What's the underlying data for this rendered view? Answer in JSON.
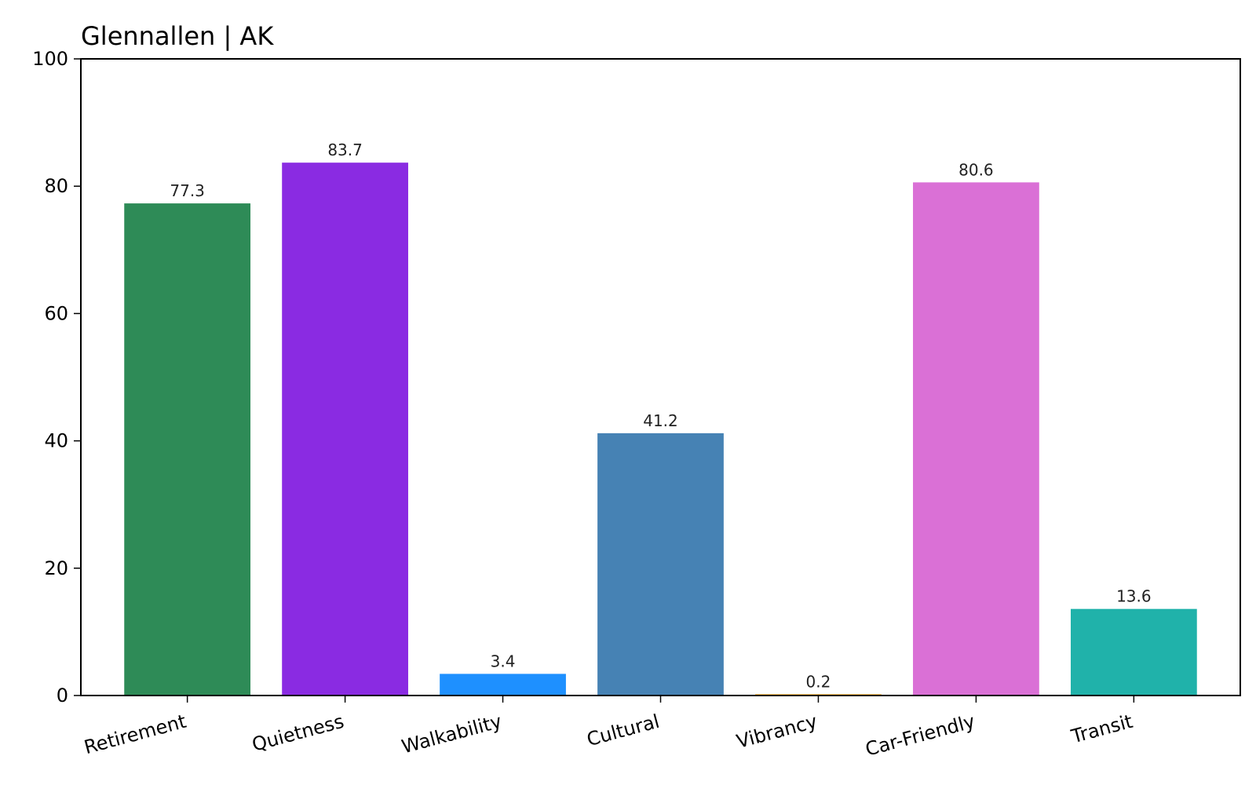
{
  "chart_data": {
    "type": "bar",
    "title": "Glennallen | AK",
    "xlabel": "",
    "ylabel": "",
    "ylim": [
      0,
      100
    ],
    "yticks": [
      0,
      20,
      40,
      60,
      80,
      100
    ],
    "grid": false,
    "categories": [
      "Retirement",
      "Quietness",
      "Walkability",
      "Cultural",
      "Vibrancy",
      "Car-Friendly",
      "Transit"
    ],
    "values": [
      77.3,
      83.7,
      3.4,
      41.2,
      0.2,
      80.6,
      13.6
    ],
    "value_labels": [
      "77.3",
      "83.7",
      "3.4",
      "41.2",
      "0.2",
      "80.6",
      "13.6"
    ],
    "colors": [
      "#2e8b57",
      "#8a2be2",
      "#1e90ff",
      "#4682b4",
      "#ffa500",
      "#da70d6",
      "#20b2aa"
    ]
  }
}
